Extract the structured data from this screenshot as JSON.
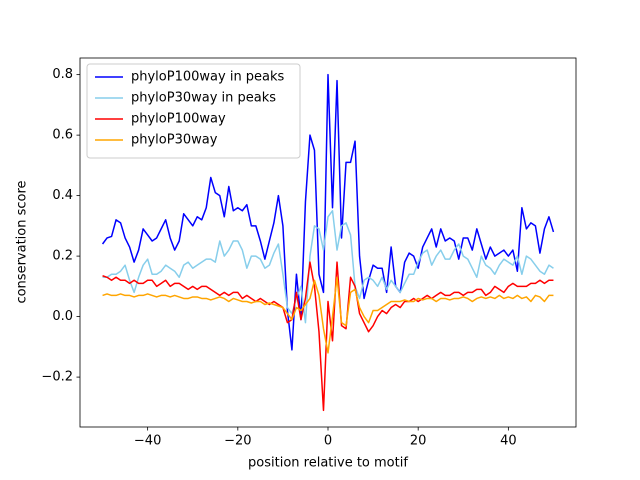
{
  "chart_data": {
    "type": "line",
    "xlabel": "position relative to motif",
    "ylabel": "conservation score",
    "xlim": [
      -55,
      55
    ],
    "ylim": [
      -0.365,
      0.855
    ],
    "xticks": [
      {
        "value": -40,
        "label": "−40"
      },
      {
        "value": -20,
        "label": "−20"
      },
      0,
      20,
      40
    ],
    "yticks": [
      {
        "value": -0.2,
        "label": "−0.2"
      },
      {
        "value": 0,
        "label": "0.0"
      },
      0.2,
      0.4,
      0.6,
      0.8
    ],
    "legend": "upper left",
    "grid": false,
    "x": [
      -50,
      -49,
      -48,
      -47,
      -46,
      -45,
      -44,
      -43,
      -42,
      -41,
      -40,
      -39,
      -38,
      -37,
      -36,
      -35,
      -34,
      -33,
      -32,
      -31,
      -30,
      -29,
      -28,
      -27,
      -26,
      -25,
      -24,
      -23,
      -22,
      -21,
      -20,
      -19,
      -18,
      -17,
      -16,
      -15,
      -14,
      -13,
      -12,
      -11,
      -10,
      -9,
      -8,
      -7,
      -6,
      -5,
      -4,
      -3,
      -2,
      -1,
      0,
      1,
      2,
      3,
      4,
      5,
      6,
      7,
      8,
      9,
      10,
      11,
      12,
      13,
      14,
      15,
      16,
      17,
      18,
      19,
      20,
      21,
      22,
      23,
      24,
      25,
      26,
      27,
      28,
      29,
      30,
      31,
      32,
      33,
      34,
      35,
      36,
      37,
      38,
      39,
      40,
      41,
      42,
      43,
      44,
      45,
      46,
      47,
      48,
      49,
      50
    ],
    "series": [
      {
        "name": "phyloP100way in peaks",
        "color": "#0000ff",
        "values": [
          0.24,
          0.26,
          0.265,
          0.32,
          0.31,
          0.26,
          0.23,
          0.18,
          0.22,
          0.29,
          0.27,
          0.25,
          0.26,
          0.29,
          0.32,
          0.26,
          0.22,
          0.25,
          0.34,
          0.32,
          0.3,
          0.33,
          0.32,
          0.36,
          0.46,
          0.41,
          0.4,
          0.33,
          0.43,
          0.35,
          0.36,
          0.35,
          0.37,
          0.3,
          0.3,
          0.25,
          0.19,
          0.25,
          0.31,
          0.4,
          0.3,
          0.02,
          -0.11,
          0.14,
          -0.01,
          0.38,
          0.6,
          0.55,
          0.14,
          0.08,
          0.8,
          0.36,
          0.78,
          0.26,
          0.51,
          0.51,
          0.58,
          0.2,
          0.06,
          0.12,
          0.17,
          0.16,
          0.16,
          0.08,
          0.23,
          0.1,
          0.08,
          0.18,
          0.21,
          0.2,
          0.16,
          0.23,
          0.26,
          0.29,
          0.23,
          0.29,
          0.25,
          0.26,
          0.25,
          0.19,
          0.26,
          0.26,
          0.22,
          0.29,
          0.24,
          0.19,
          0.23,
          0.2,
          0.21,
          0.22,
          0.2,
          0.22,
          0.15,
          0.36,
          0.29,
          0.31,
          0.3,
          0.21,
          0.29,
          0.33,
          0.28
        ]
      },
      {
        "name": "phyloP30way in peaks",
        "color": "#87ceeb",
        "values": [
          0.13,
          0.13,
          0.14,
          0.14,
          0.15,
          0.17,
          0.12,
          0.08,
          0.13,
          0.17,
          0.19,
          0.14,
          0.14,
          0.15,
          0.17,
          0.16,
          0.15,
          0.13,
          0.17,
          0.18,
          0.16,
          0.17,
          0.18,
          0.19,
          0.19,
          0.18,
          0.25,
          0.2,
          0.22,
          0.25,
          0.25,
          0.22,
          0.16,
          0.2,
          0.2,
          0.19,
          0.16,
          0.17,
          0.21,
          0.24,
          0.14,
          0.03,
          0.01,
          0.06,
          0.1,
          -0.02,
          0.2,
          0.3,
          0.29,
          0.22,
          0.33,
          0.35,
          0.22,
          0.3,
          0.31,
          0.27,
          0.1,
          0.06,
          0.12,
          0.13,
          0.12,
          0.1,
          0.13,
          0.09,
          0.12,
          0.1,
          0.08,
          0.11,
          0.14,
          0.14,
          0.18,
          0.21,
          0.22,
          0.17,
          0.2,
          0.22,
          0.19,
          0.19,
          0.22,
          0.24,
          0.2,
          0.19,
          0.16,
          0.13,
          0.2,
          0.17,
          0.16,
          0.14,
          0.17,
          0.19,
          0.18,
          0.17,
          0.2,
          0.14,
          0.2,
          0.19,
          0.17,
          0.15,
          0.14,
          0.17,
          0.16
        ]
      },
      {
        "name": "phyloP100way",
        "color": "#ff0000",
        "values": [
          0.135,
          0.13,
          0.12,
          0.13,
          0.12,
          0.12,
          0.11,
          0.12,
          0.11,
          0.11,
          0.12,
          0.12,
          0.1,
          0.11,
          0.12,
          0.1,
          0.11,
          0.11,
          0.1,
          0.09,
          0.1,
          0.09,
          0.1,
          0.1,
          0.09,
          0.08,
          0.07,
          0.08,
          0.07,
          0.08,
          0.08,
          0.06,
          0.07,
          0.06,
          0.05,
          0.06,
          0.05,
          0.04,
          0.05,
          0.04,
          0.03,
          -0.02,
          -0.01,
          0.08,
          -0.01,
          0.06,
          0.18,
          0.1,
          -0.05,
          -0.31,
          0.05,
          -0.08,
          0.18,
          -0.03,
          -0.04,
          0.13,
          0.1,
          0.01,
          -0.02,
          -0.05,
          -0.03,
          0.0,
          0.02,
          0.01,
          0.03,
          0.04,
          0.03,
          0.05,
          0.05,
          0.06,
          0.05,
          0.06,
          0.07,
          0.06,
          0.07,
          0.08,
          0.07,
          0.07,
          0.08,
          0.08,
          0.07,
          0.08,
          0.08,
          0.09,
          0.09,
          0.07,
          0.08,
          0.1,
          0.09,
          0.08,
          0.1,
          0.11,
          0.1,
          0.1,
          0.1,
          0.11,
          0.11,
          0.12,
          0.11,
          0.12,
          0.12
        ]
      },
      {
        "name": "phyloP30way",
        "color": "#ffa500",
        "values": [
          0.07,
          0.075,
          0.07,
          0.07,
          0.075,
          0.07,
          0.07,
          0.065,
          0.07,
          0.07,
          0.075,
          0.07,
          0.065,
          0.07,
          0.07,
          0.065,
          0.07,
          0.065,
          0.06,
          0.06,
          0.065,
          0.065,
          0.06,
          0.06,
          0.055,
          0.06,
          0.065,
          0.06,
          0.05,
          0.06,
          0.055,
          0.05,
          0.05,
          0.045,
          0.05,
          0.05,
          0.04,
          0.045,
          0.04,
          0.035,
          0.03,
          0.01,
          -0.01,
          0.03,
          0.02,
          0.04,
          0.06,
          0.12,
          0.07,
          -0.04,
          -0.12,
          0.0,
          0.13,
          -0.02,
          -0.03,
          0.08,
          0.09,
          0.03,
          0.0,
          -0.02,
          0.02,
          0.02,
          0.03,
          0.04,
          0.05,
          0.05,
          0.05,
          0.055,
          0.05,
          0.05,
          0.06,
          0.055,
          0.06,
          0.06,
          0.05,
          0.06,
          0.06,
          0.055,
          0.06,
          0.06,
          0.065,
          0.06,
          0.05,
          0.06,
          0.065,
          0.06,
          0.065,
          0.06,
          0.07,
          0.06,
          0.065,
          0.06,
          0.07,
          0.06,
          0.065,
          0.05,
          0.07,
          0.065,
          0.05,
          0.07,
          0.07
        ]
      }
    ]
  }
}
